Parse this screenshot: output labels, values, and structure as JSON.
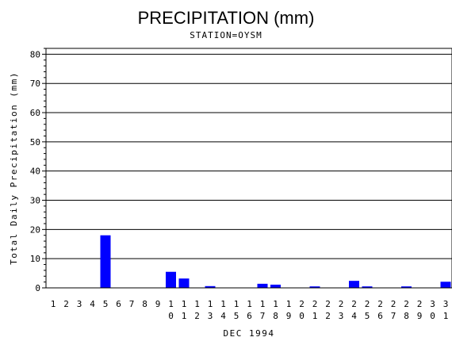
{
  "chart_data": {
    "type": "bar",
    "title": "PRECIPITATION (mm)",
    "subtitle": "STATION=OYSM",
    "xlabel": "DEC 1994",
    "ylabel": "Total Daily Precipitation (mm)",
    "ylim": [
      0,
      82
    ],
    "yticks": [
      0,
      10,
      20,
      30,
      40,
      50,
      60,
      70,
      80
    ],
    "grid": true,
    "bar_color": "#0000ff",
    "categories": [
      "1",
      "2",
      "3",
      "4",
      "5",
      "6",
      "7",
      "8",
      "9",
      "10",
      "11",
      "12",
      "13",
      "14",
      "15",
      "16",
      "17",
      "18",
      "19",
      "20",
      "21",
      "22",
      "23",
      "24",
      "25",
      "26",
      "27",
      "28",
      "29",
      "30",
      "31"
    ],
    "values": [
      0,
      0,
      0,
      0,
      18,
      0,
      0,
      0,
      0,
      5.5,
      3.2,
      0,
      0.6,
      0,
      0,
      0,
      1.4,
      1.1,
      0,
      0,
      0.5,
      0,
      0,
      2.4,
      0.5,
      0,
      0,
      0.5,
      0,
      0,
      2.1
    ]
  }
}
